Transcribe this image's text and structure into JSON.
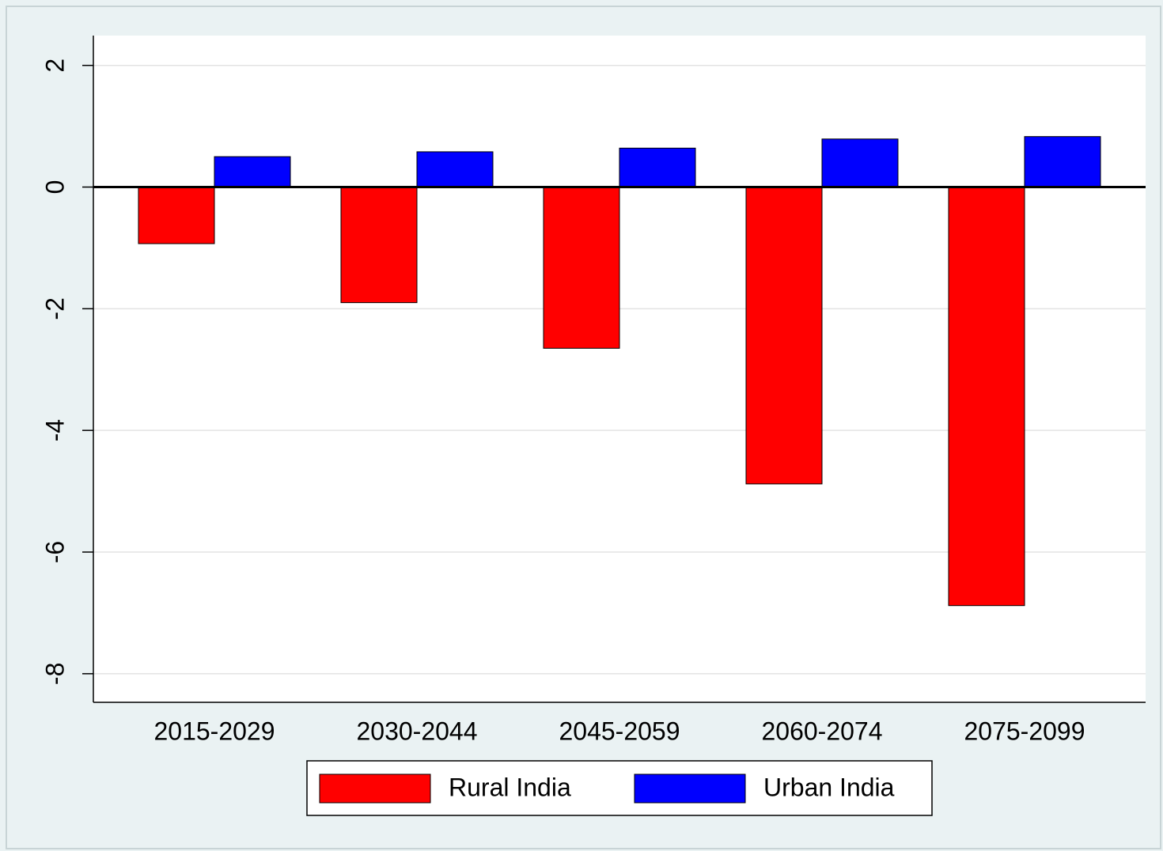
{
  "chart_data": {
    "type": "bar",
    "categories": [
      "2015-2029",
      "2030-2044",
      "2045-2059",
      "2060-2074",
      "2075-2099"
    ],
    "series": [
      {
        "name": "Rural India",
        "color": "#ff0000",
        "values": [
          -0.93,
          -1.9,
          -2.65,
          -4.88,
          -6.88
        ]
      },
      {
        "name": "Urban India",
        "color": "#0000ff",
        "values": [
          0.5,
          0.58,
          0.64,
          0.79,
          0.83
        ]
      }
    ],
    "ylim": [
      -8.47,
      2.49
    ],
    "yticks": [
      2,
      0,
      -2,
      -4,
      -6,
      -8
    ],
    "grid": true,
    "legend": "bottom"
  }
}
